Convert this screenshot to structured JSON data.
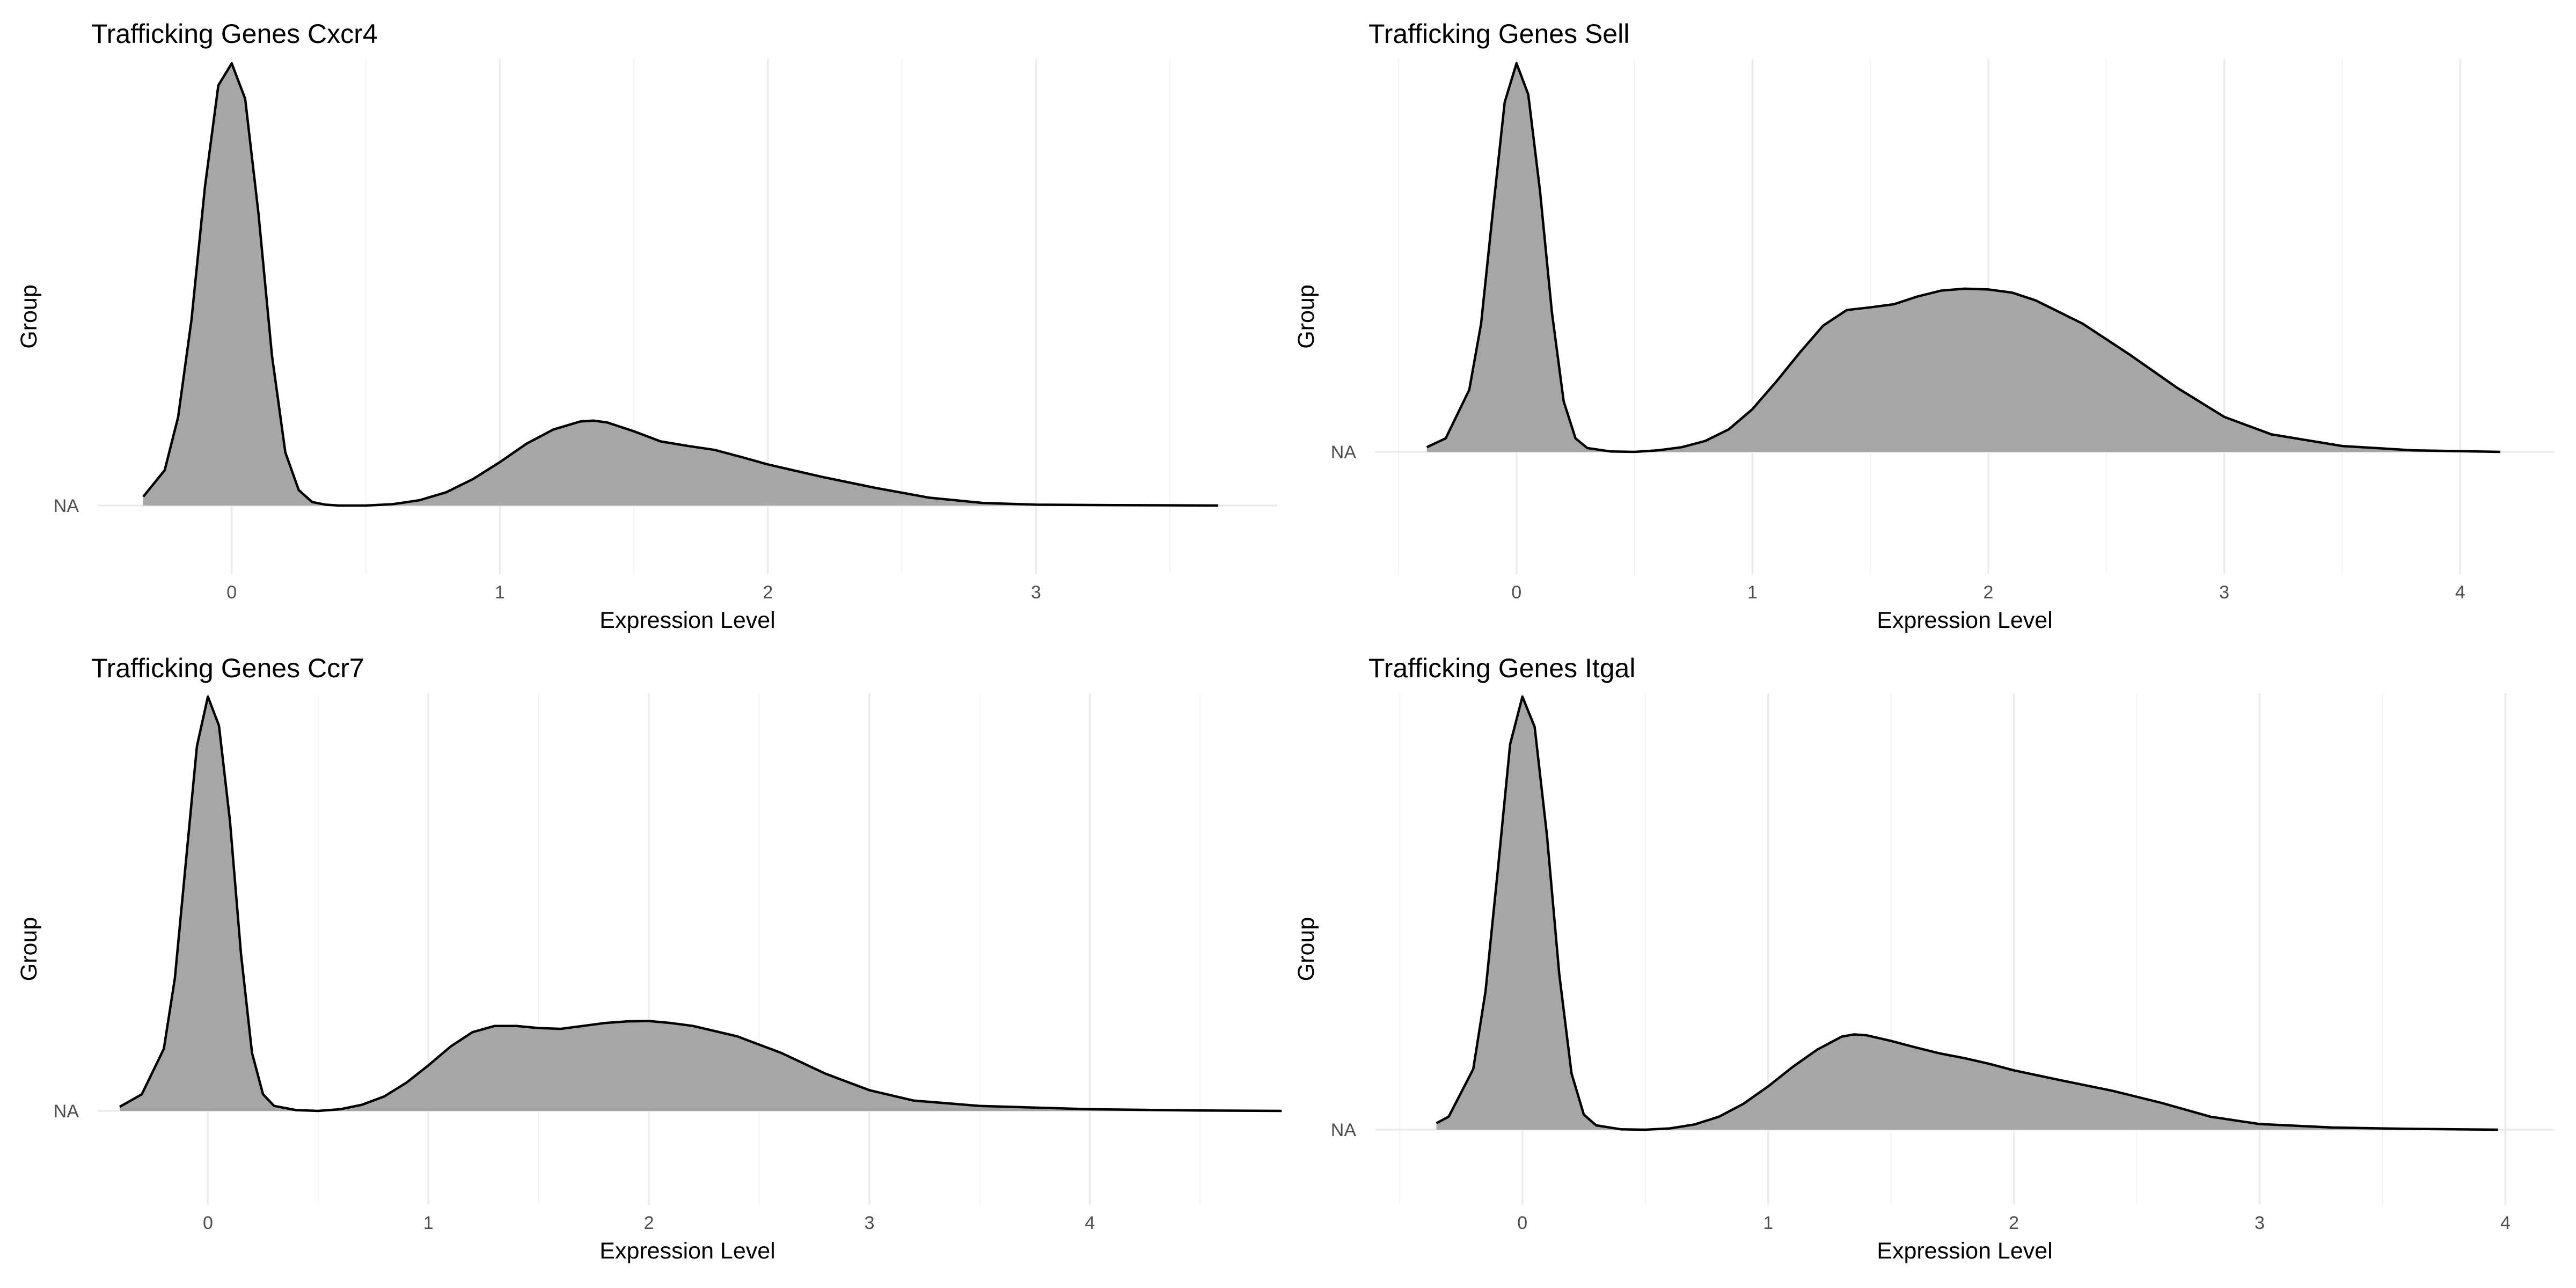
{
  "colors": {
    "fill": "#a6a6a6",
    "line": "#000000",
    "grid_major": "#ebebeb",
    "grid_minor": "#f3f3f3"
  },
  "chart_data": [
    {
      "type": "area",
      "subtype": "ridgeline-density",
      "title": "Trafficking Genes Cxcr4",
      "xlabel": "Expression Level",
      "ylabel": "Group",
      "xlim": [
        -0.5,
        3.9
      ],
      "xticks": [
        0,
        1,
        2,
        3
      ],
      "yticks": [
        "NA"
      ],
      "grid": true,
      "series": [
        {
          "category": "NA",
          "x": [
            -0.33,
            -0.25,
            -0.2,
            -0.15,
            -0.1,
            -0.05,
            0.0,
            0.05,
            0.1,
            0.15,
            0.2,
            0.25,
            0.3,
            0.35,
            0.4,
            0.5,
            0.6,
            0.7,
            0.8,
            0.9,
            1.0,
            1.1,
            1.2,
            1.3,
            1.35,
            1.4,
            1.5,
            1.6,
            1.7,
            1.8,
            1.9,
            2.0,
            2.2,
            2.4,
            2.6,
            2.8,
            3.0,
            3.3,
            3.68
          ],
          "density": [
            0.02,
            0.08,
            0.2,
            0.42,
            0.72,
            0.95,
            1.0,
            0.92,
            0.66,
            0.34,
            0.12,
            0.035,
            0.008,
            0.002,
            0.0,
            0.0,
            0.003,
            0.012,
            0.03,
            0.06,
            0.098,
            0.14,
            0.172,
            0.19,
            0.192,
            0.188,
            0.168,
            0.145,
            0.135,
            0.126,
            0.11,
            0.093,
            0.065,
            0.04,
            0.018,
            0.006,
            0.002,
            0.001,
            0.0
          ]
        }
      ]
    },
    {
      "type": "area",
      "subtype": "ridgeline-density",
      "title": "Trafficking Genes Sell",
      "xlabel": "Expression Level",
      "ylabel": "Group",
      "xlim": [
        -0.6,
        4.4
      ],
      "xticks": [
        0,
        1,
        2,
        3,
        4
      ],
      "yticks": [
        "NA"
      ],
      "grid": true,
      "series": [
        {
          "category": "NA",
          "x": [
            -0.38,
            -0.3,
            -0.2,
            -0.15,
            -0.1,
            -0.05,
            0.0,
            0.05,
            0.1,
            0.15,
            0.2,
            0.25,
            0.3,
            0.4,
            0.5,
            0.6,
            0.7,
            0.8,
            0.9,
            1.0,
            1.1,
            1.2,
            1.3,
            1.4,
            1.5,
            1.6,
            1.7,
            1.8,
            1.9,
            2.0,
            2.1,
            2.2,
            2.4,
            2.6,
            2.8,
            3.0,
            3.2,
            3.5,
            3.8,
            4.17
          ],
          "density": [
            0.012,
            0.035,
            0.16,
            0.33,
            0.62,
            0.9,
            1.0,
            0.92,
            0.67,
            0.36,
            0.13,
            0.035,
            0.01,
            0.001,
            0.0,
            0.004,
            0.012,
            0.028,
            0.058,
            0.11,
            0.18,
            0.255,
            0.325,
            0.365,
            0.372,
            0.38,
            0.4,
            0.415,
            0.42,
            0.418,
            0.41,
            0.39,
            0.33,
            0.25,
            0.165,
            0.09,
            0.045,
            0.015,
            0.004,
            0.0
          ]
        }
      ]
    },
    {
      "type": "area",
      "subtype": "ridgeline-density",
      "title": "Trafficking Genes Ccr7",
      "xlabel": "Expression Level",
      "ylabel": "Group",
      "xlim": [
        -0.5,
        4.85
      ],
      "xticks": [
        0,
        1,
        2,
        3,
        4
      ],
      "yticks": [
        "NA"
      ],
      "grid": true,
      "series": [
        {
          "category": "NA",
          "x": [
            -0.4,
            -0.3,
            -0.2,
            -0.15,
            -0.1,
            -0.05,
            0.0,
            0.05,
            0.1,
            0.15,
            0.2,
            0.25,
            0.3,
            0.4,
            0.5,
            0.6,
            0.7,
            0.8,
            0.9,
            1.0,
            1.1,
            1.2,
            1.3,
            1.4,
            1.5,
            1.6,
            1.7,
            1.8,
            1.9,
            2.0,
            2.1,
            2.2,
            2.4,
            2.6,
            2.8,
            3.0,
            3.2,
            3.5,
            4.0,
            4.5,
            4.87
          ],
          "density": [
            0.01,
            0.04,
            0.15,
            0.32,
            0.6,
            0.88,
            1.0,
            0.93,
            0.7,
            0.38,
            0.14,
            0.04,
            0.012,
            0.002,
            0.0,
            0.004,
            0.015,
            0.035,
            0.068,
            0.11,
            0.155,
            0.19,
            0.205,
            0.205,
            0.2,
            0.198,
            0.205,
            0.212,
            0.216,
            0.217,
            0.212,
            0.205,
            0.18,
            0.14,
            0.09,
            0.05,
            0.025,
            0.012,
            0.004,
            0.001,
            0.0
          ]
        }
      ]
    },
    {
      "type": "area",
      "subtype": "ridgeline-density",
      "title": "Trafficking Genes Itgal",
      "xlabel": "Expression Level",
      "ylabel": "Group",
      "xlim": [
        -0.6,
        4.2
      ],
      "xticks": [
        0,
        1,
        2,
        3,
        4
      ],
      "yticks": [
        "NA"
      ],
      "grid": true,
      "series": [
        {
          "category": "NA",
          "x": [
            -0.35,
            -0.3,
            -0.2,
            -0.15,
            -0.1,
            -0.05,
            0.0,
            0.05,
            0.1,
            0.15,
            0.2,
            0.25,
            0.3,
            0.4,
            0.5,
            0.6,
            0.7,
            0.8,
            0.9,
            1.0,
            1.1,
            1.2,
            1.3,
            1.35,
            1.4,
            1.5,
            1.6,
            1.7,
            1.8,
            1.9,
            2.0,
            2.2,
            2.4,
            2.6,
            2.8,
            3.0,
            3.3,
            3.6,
            3.97
          ],
          "density": [
            0.015,
            0.03,
            0.14,
            0.32,
            0.6,
            0.89,
            1.0,
            0.93,
            0.68,
            0.36,
            0.13,
            0.035,
            0.01,
            0.001,
            0.0,
            0.003,
            0.012,
            0.03,
            0.06,
            0.1,
            0.145,
            0.185,
            0.215,
            0.22,
            0.218,
            0.205,
            0.19,
            0.176,
            0.165,
            0.152,
            0.137,
            0.113,
            0.09,
            0.062,
            0.03,
            0.013,
            0.005,
            0.002,
            0.0
          ]
        }
      ]
    }
  ]
}
